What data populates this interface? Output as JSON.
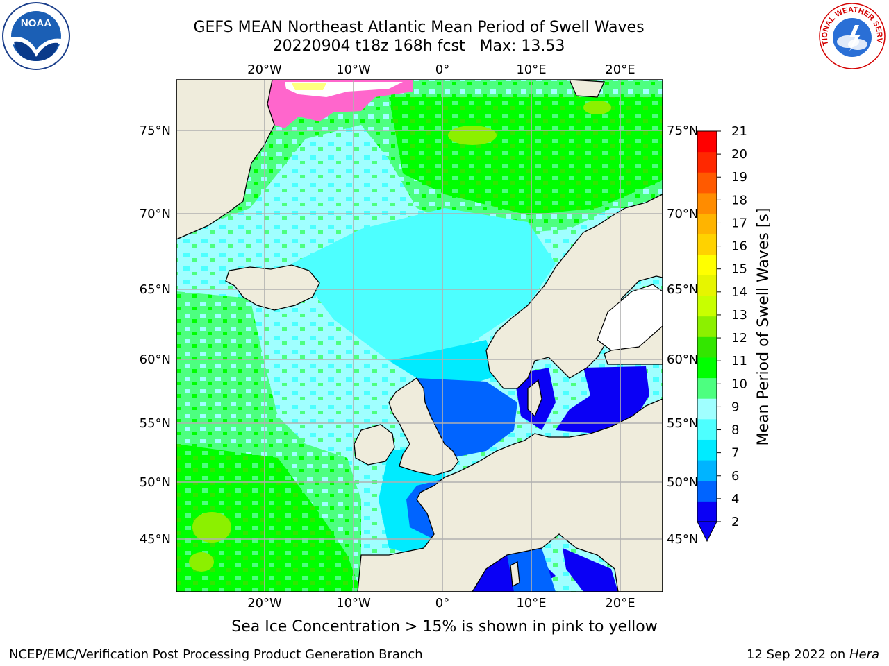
{
  "header": {
    "title_line1": "GEFS MEAN Northeast Atlantic Mean Period of Swell Waves",
    "title_line2": "20220904 t18z 168h fcst   Max: 13.53"
  },
  "logos": {
    "left": "noaa-logo",
    "left_text": "NOAA",
    "left_ring_text": "NATIONAL OCEANIC AND ATMOSPHERIC ADMINISTRATION",
    "left_ring_text_bottom": "U.S. DEPARTMENT OF COMMERCE",
    "right": "national-weather-service-logo",
    "right_ring_text": "NATIONAL WEATHER SERVICE"
  },
  "map": {
    "lon_labels_top": [
      "20°W",
      "10°W",
      "0°",
      "10°E",
      "20°E"
    ],
    "lon_labels_bottom": [
      "20°W",
      "10°W",
      "0°",
      "10°E",
      "20°E"
    ],
    "lat_labels_left": [
      "75°N",
      "70°N",
      "65°N",
      "60°N",
      "55°N",
      "50°N",
      "45°N"
    ],
    "lat_labels_right": [
      "75°N",
      "70°N",
      "65°N",
      "60°N",
      "55°N",
      "50°N",
      "45°N"
    ],
    "land_color": "#efecdc",
    "grid_color": "#b0b0b0"
  },
  "colorbar": {
    "label": "Mean Period of Swell Waves [s]",
    "ticks": [
      "2",
      "4",
      "6",
      "7",
      "8",
      "9",
      "10",
      "11",
      "12",
      "13",
      "14",
      "15",
      "16",
      "17",
      "18",
      "19",
      "20",
      "21"
    ],
    "colors": [
      "#0a00f5",
      "#0064ff",
      "#00b4ff",
      "#00ebff",
      "#4dffff",
      "#a0ffff",
      "#4dff80",
      "#00ff00",
      "#33e600",
      "#8cf000",
      "#c8ff00",
      "#e6f500",
      "#ffff00",
      "#ffd200",
      "#ffb400",
      "#ff8c00",
      "#ff5a00",
      "#ff2800",
      "#ff0000"
    ]
  },
  "footer": {
    "note": "Sea Ice Concentration > 15% is shown in pink to yellow",
    "credit": "NCEP/EMC/Verification Post Processing Product Generation Branch",
    "date": "12 Sep 2022 on ",
    "host": "Hera"
  }
}
